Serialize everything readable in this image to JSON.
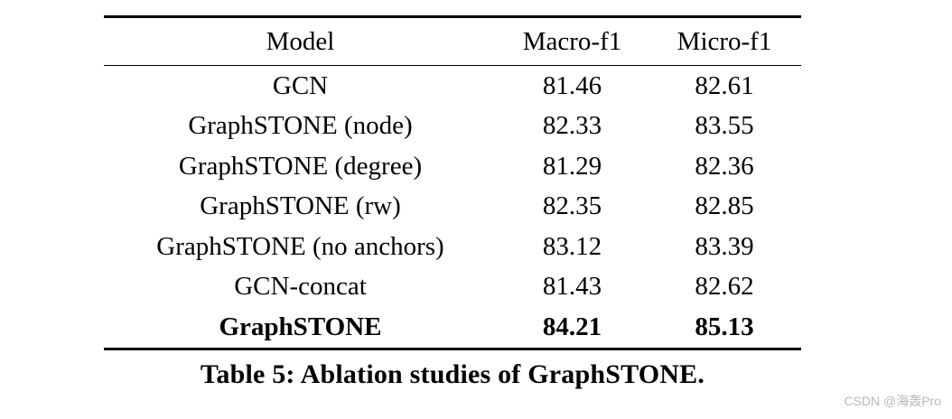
{
  "table": {
    "headers": [
      "Model",
      "Macro-f1",
      "Micro-f1"
    ],
    "rows": [
      {
        "model": "GCN",
        "macro": "81.46",
        "micro": "82.61",
        "bold": false
      },
      {
        "model": "GraphSTONE (node)",
        "macro": "82.33",
        "micro": "83.55",
        "bold": false
      },
      {
        "model": "GraphSTONE (degree)",
        "macro": "81.29",
        "micro": "82.36",
        "bold": false
      },
      {
        "model": "GraphSTONE (rw)",
        "macro": "82.35",
        "micro": "82.85",
        "bold": false
      },
      {
        "model": "GraphSTONE (no anchors)",
        "macro": "83.12",
        "micro": "83.39",
        "bold": false
      },
      {
        "model": "GCN-concat",
        "macro": "81.43",
        "micro": "82.62",
        "bold": false
      },
      {
        "model": "GraphSTONE",
        "macro": "84.21",
        "micro": "85.13",
        "bold": true
      }
    ],
    "caption": "Table 5: Ablation studies of GraphSTONE."
  },
  "watermark": {
    "text": "CSDN @海轰Pro",
    "color": "#b3b9be"
  },
  "colors": {
    "background": "#ffffff",
    "text": "#000000",
    "rule": "#000000"
  },
  "chart_data": {
    "type": "table",
    "title": "Table 5: Ablation studies of GraphSTONE.",
    "columns": [
      "Model",
      "Macro-f1",
      "Micro-f1"
    ],
    "rows": [
      [
        "GCN",
        81.46,
        82.61
      ],
      [
        "GraphSTONE (node)",
        82.33,
        83.55
      ],
      [
        "GraphSTONE (degree)",
        81.29,
        82.36
      ],
      [
        "GraphSTONE (rw)",
        82.35,
        82.85
      ],
      [
        "GraphSTONE (no anchors)",
        83.12,
        83.39
      ],
      [
        "GCN-concat",
        81.43,
        82.62
      ],
      [
        "GraphSTONE",
        84.21,
        85.13
      ]
    ],
    "emphasis": "GraphSTONE row shown in bold (best result)"
  }
}
